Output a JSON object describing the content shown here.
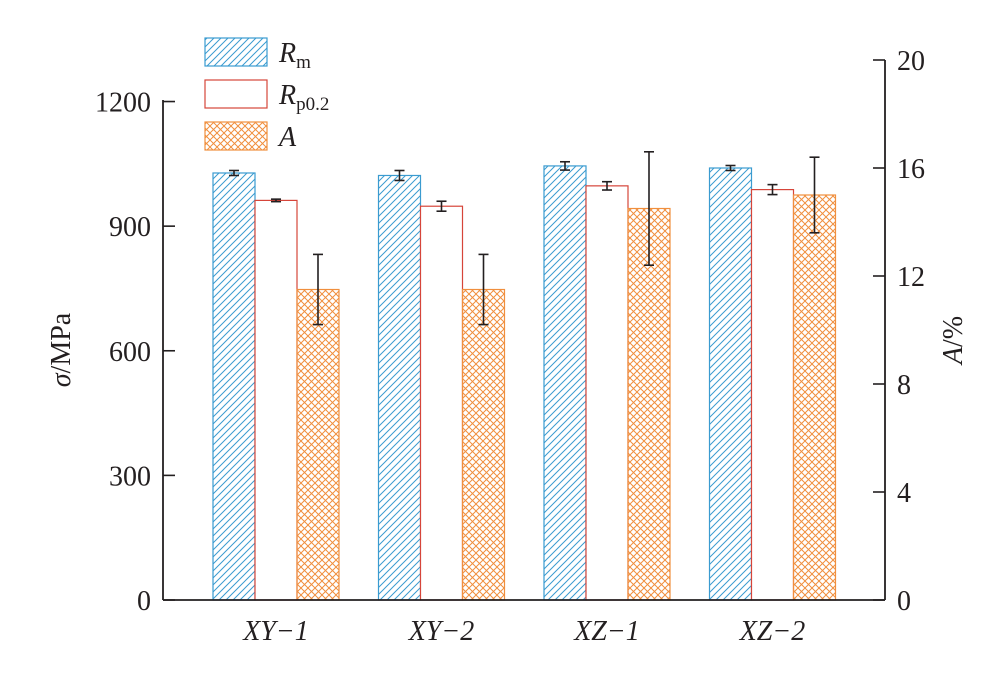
{
  "chart_data": {
    "type": "bar",
    "categories": [
      "XY−1",
      "XY−2",
      "XZ−1",
      "XZ−2"
    ],
    "series": [
      {
        "name_main": "R",
        "name_sub": "m",
        "axis": "left",
        "values": [
          1028,
          1022,
          1045,
          1040
        ],
        "error": [
          6,
          12,
          10,
          6
        ],
        "color": "#3a9bd0",
        "pattern": "diagonal"
      },
      {
        "name_main": "R",
        "name_sub": "p0.2",
        "axis": "left",
        "values": [
          962,
          948,
          997,
          988
        ],
        "error": [
          3,
          12,
          10,
          12
        ],
        "color": "#d6453a",
        "pattern": "none"
      },
      {
        "name_main": "A",
        "name_sub": "",
        "axis": "right",
        "values": [
          11.5,
          11.5,
          14.5,
          15.0
        ],
        "error": [
          1.3,
          1.3,
          2.1,
          1.4
        ],
        "color": "#f08f3e",
        "pattern": "crosshatch"
      }
    ],
    "y_left": {
      "label_symbol": "σ",
      "label_unit": "/MPa",
      "range": [
        0,
        1300
      ],
      "ticks": [
        "0",
        "300",
        "600",
        "900",
        "1200"
      ]
    },
    "y_right": {
      "label_symbol": "A",
      "label_unit": "/%",
      "range": [
        0,
        20
      ],
      "ticks": [
        "0",
        "4",
        "8",
        "12",
        "16",
        "20"
      ]
    },
    "grid": false,
    "legend_position": "top-left"
  }
}
